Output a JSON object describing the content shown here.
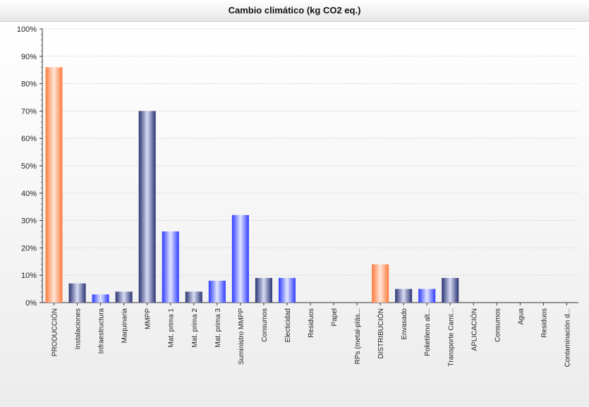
{
  "chart_data": {
    "type": "bar",
    "title": "Cambio climático (kg CO2 eq.)",
    "xlabel": "",
    "ylabel": "",
    "ylim": [
      0,
      100
    ],
    "yticks": [
      "0%",
      "10%",
      "20%",
      "30%",
      "40%",
      "50%",
      "60%",
      "70%",
      "80%",
      "90%",
      "100%"
    ],
    "grid": true,
    "categories": [
      "PRODUCCIÓN",
      "Instalaciones",
      "Infraestructura",
      "Maquinaria",
      "MMPP",
      "Mat. prima 1",
      "Mat. prima 2",
      "Mat. prima 3",
      "Suministro MMPP",
      "Consumos",
      "Electicidad",
      "Residuos",
      "Papel",
      "RPs (metal-plás...",
      "DISTRIBUCIÓN",
      "Envasado",
      "Polietileno alt...",
      "Transporte Cami...",
      "APLICACIÓN",
      "Consumos",
      "Agua",
      "Residuos",
      "Contaminación d..."
    ],
    "values": [
      86,
      7,
      3,
      4,
      70,
      26,
      4,
      8,
      32,
      9,
      9,
      0,
      0,
      0,
      14,
      5,
      5,
      9,
      0,
      0,
      0,
      0,
      0
    ],
    "bar_styles": [
      "orange",
      "navy",
      "blue",
      "navy",
      "navy",
      "blue",
      "navy",
      "blue",
      "blue",
      "navy",
      "blue",
      "blue",
      "blue",
      "blue",
      "orange",
      "navy",
      "blue",
      "navy",
      "blue",
      "blue",
      "blue",
      "blue",
      "blue"
    ],
    "colors": {
      "orange": [
        "#ff7a3c",
        "#ffe6d8"
      ],
      "navy": [
        "#2a3372",
        "#d8dcf4"
      ],
      "blue": [
        "#2e3cff",
        "#e2e6ff"
      ]
    }
  }
}
